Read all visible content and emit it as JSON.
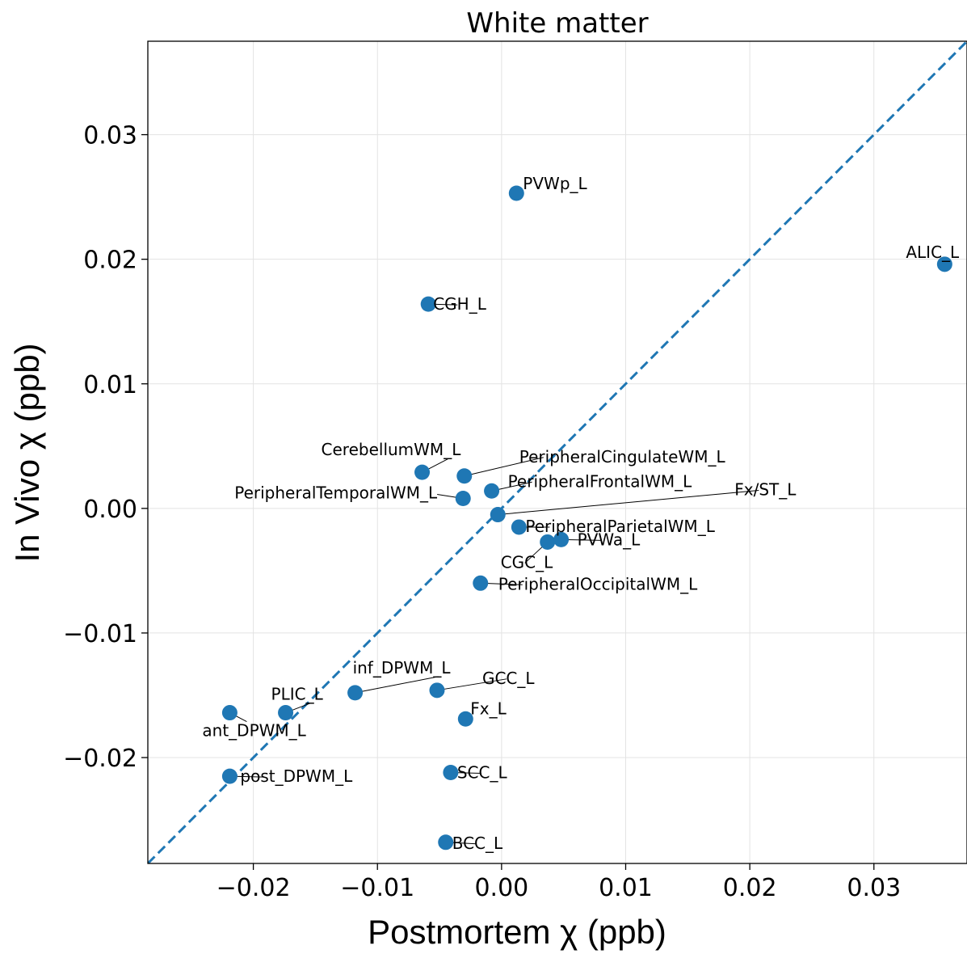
{
  "chart_data": {
    "type": "scatter",
    "title": "White matter",
    "xlabel": "Postmortem χ (ppb)",
    "ylabel": "In Vivo χ (ppb)",
    "xlim": [
      -0.0285,
      0.0375
    ],
    "ylim": [
      -0.0285,
      0.0375
    ],
    "xticks": [
      -0.02,
      -0.01,
      0.0,
      0.01,
      0.02,
      0.03
    ],
    "yticks": [
      -0.02,
      -0.01,
      0.0,
      0.01,
      0.02,
      0.03
    ],
    "xtick_labels": [
      "−0.02",
      "−0.01",
      "0.00",
      "0.01",
      "0.02",
      "0.03"
    ],
    "ytick_labels": [
      "−0.02",
      "−0.01",
      "0.00",
      "0.01",
      "0.02",
      "0.03"
    ],
    "grid": true,
    "reference_line": "y = x (dashed)",
    "point_color": "#1f77b4",
    "line_color": "#1f77b4",
    "points": [
      {
        "label": "PVWp_L",
        "x": 0.0012,
        "y": 0.0253
      },
      {
        "label": "ALIC_L",
        "x": 0.0357,
        "y": 0.0196
      },
      {
        "label": "CGH_L",
        "x": -0.0059,
        "y": 0.0164
      },
      {
        "label": "CerebellumWM_L",
        "x": -0.0064,
        "y": 0.0029
      },
      {
        "label": "PeripheralCingulateWM_L",
        "x": -0.003,
        "y": 0.0026
      },
      {
        "label": "PeripheralTemporalWM_L",
        "x": -0.0031,
        "y": 0.0008
      },
      {
        "label": "PeripheralFrontalWM_L",
        "x": -0.0008,
        "y": 0.0014
      },
      {
        "label": "Fx/ST_L",
        "x": -0.0003,
        "y": -0.0005
      },
      {
        "label": "PeripheralParietalWM_L",
        "x": 0.0014,
        "y": -0.0015
      },
      {
        "label": "CGC_L",
        "x": 0.0037,
        "y": -0.0027
      },
      {
        "label": "PVWa_L",
        "x": 0.0048,
        "y": -0.0025
      },
      {
        "label": "PeripheralOccipitalWM_L",
        "x": -0.0017,
        "y": -0.006
      },
      {
        "label": "inf_DPWM_L",
        "x": -0.0118,
        "y": -0.0148
      },
      {
        "label": "GCC_L",
        "x": -0.0052,
        "y": -0.0146
      },
      {
        "label": "PLIC_L",
        "x": -0.0174,
        "y": -0.0164
      },
      {
        "label": "ant_DPWM_L",
        "x": -0.0219,
        "y": -0.0164
      },
      {
        "label": "Fx_L",
        "x": -0.0029,
        "y": -0.0169
      },
      {
        "label": "post_DPWM_L",
        "x": -0.0219,
        "y": -0.0215
      },
      {
        "label": "SCC_L",
        "x": -0.0041,
        "y": -0.0212
      },
      {
        "label": "BCC_L",
        "x": -0.0045,
        "y": -0.0268
      }
    ]
  }
}
